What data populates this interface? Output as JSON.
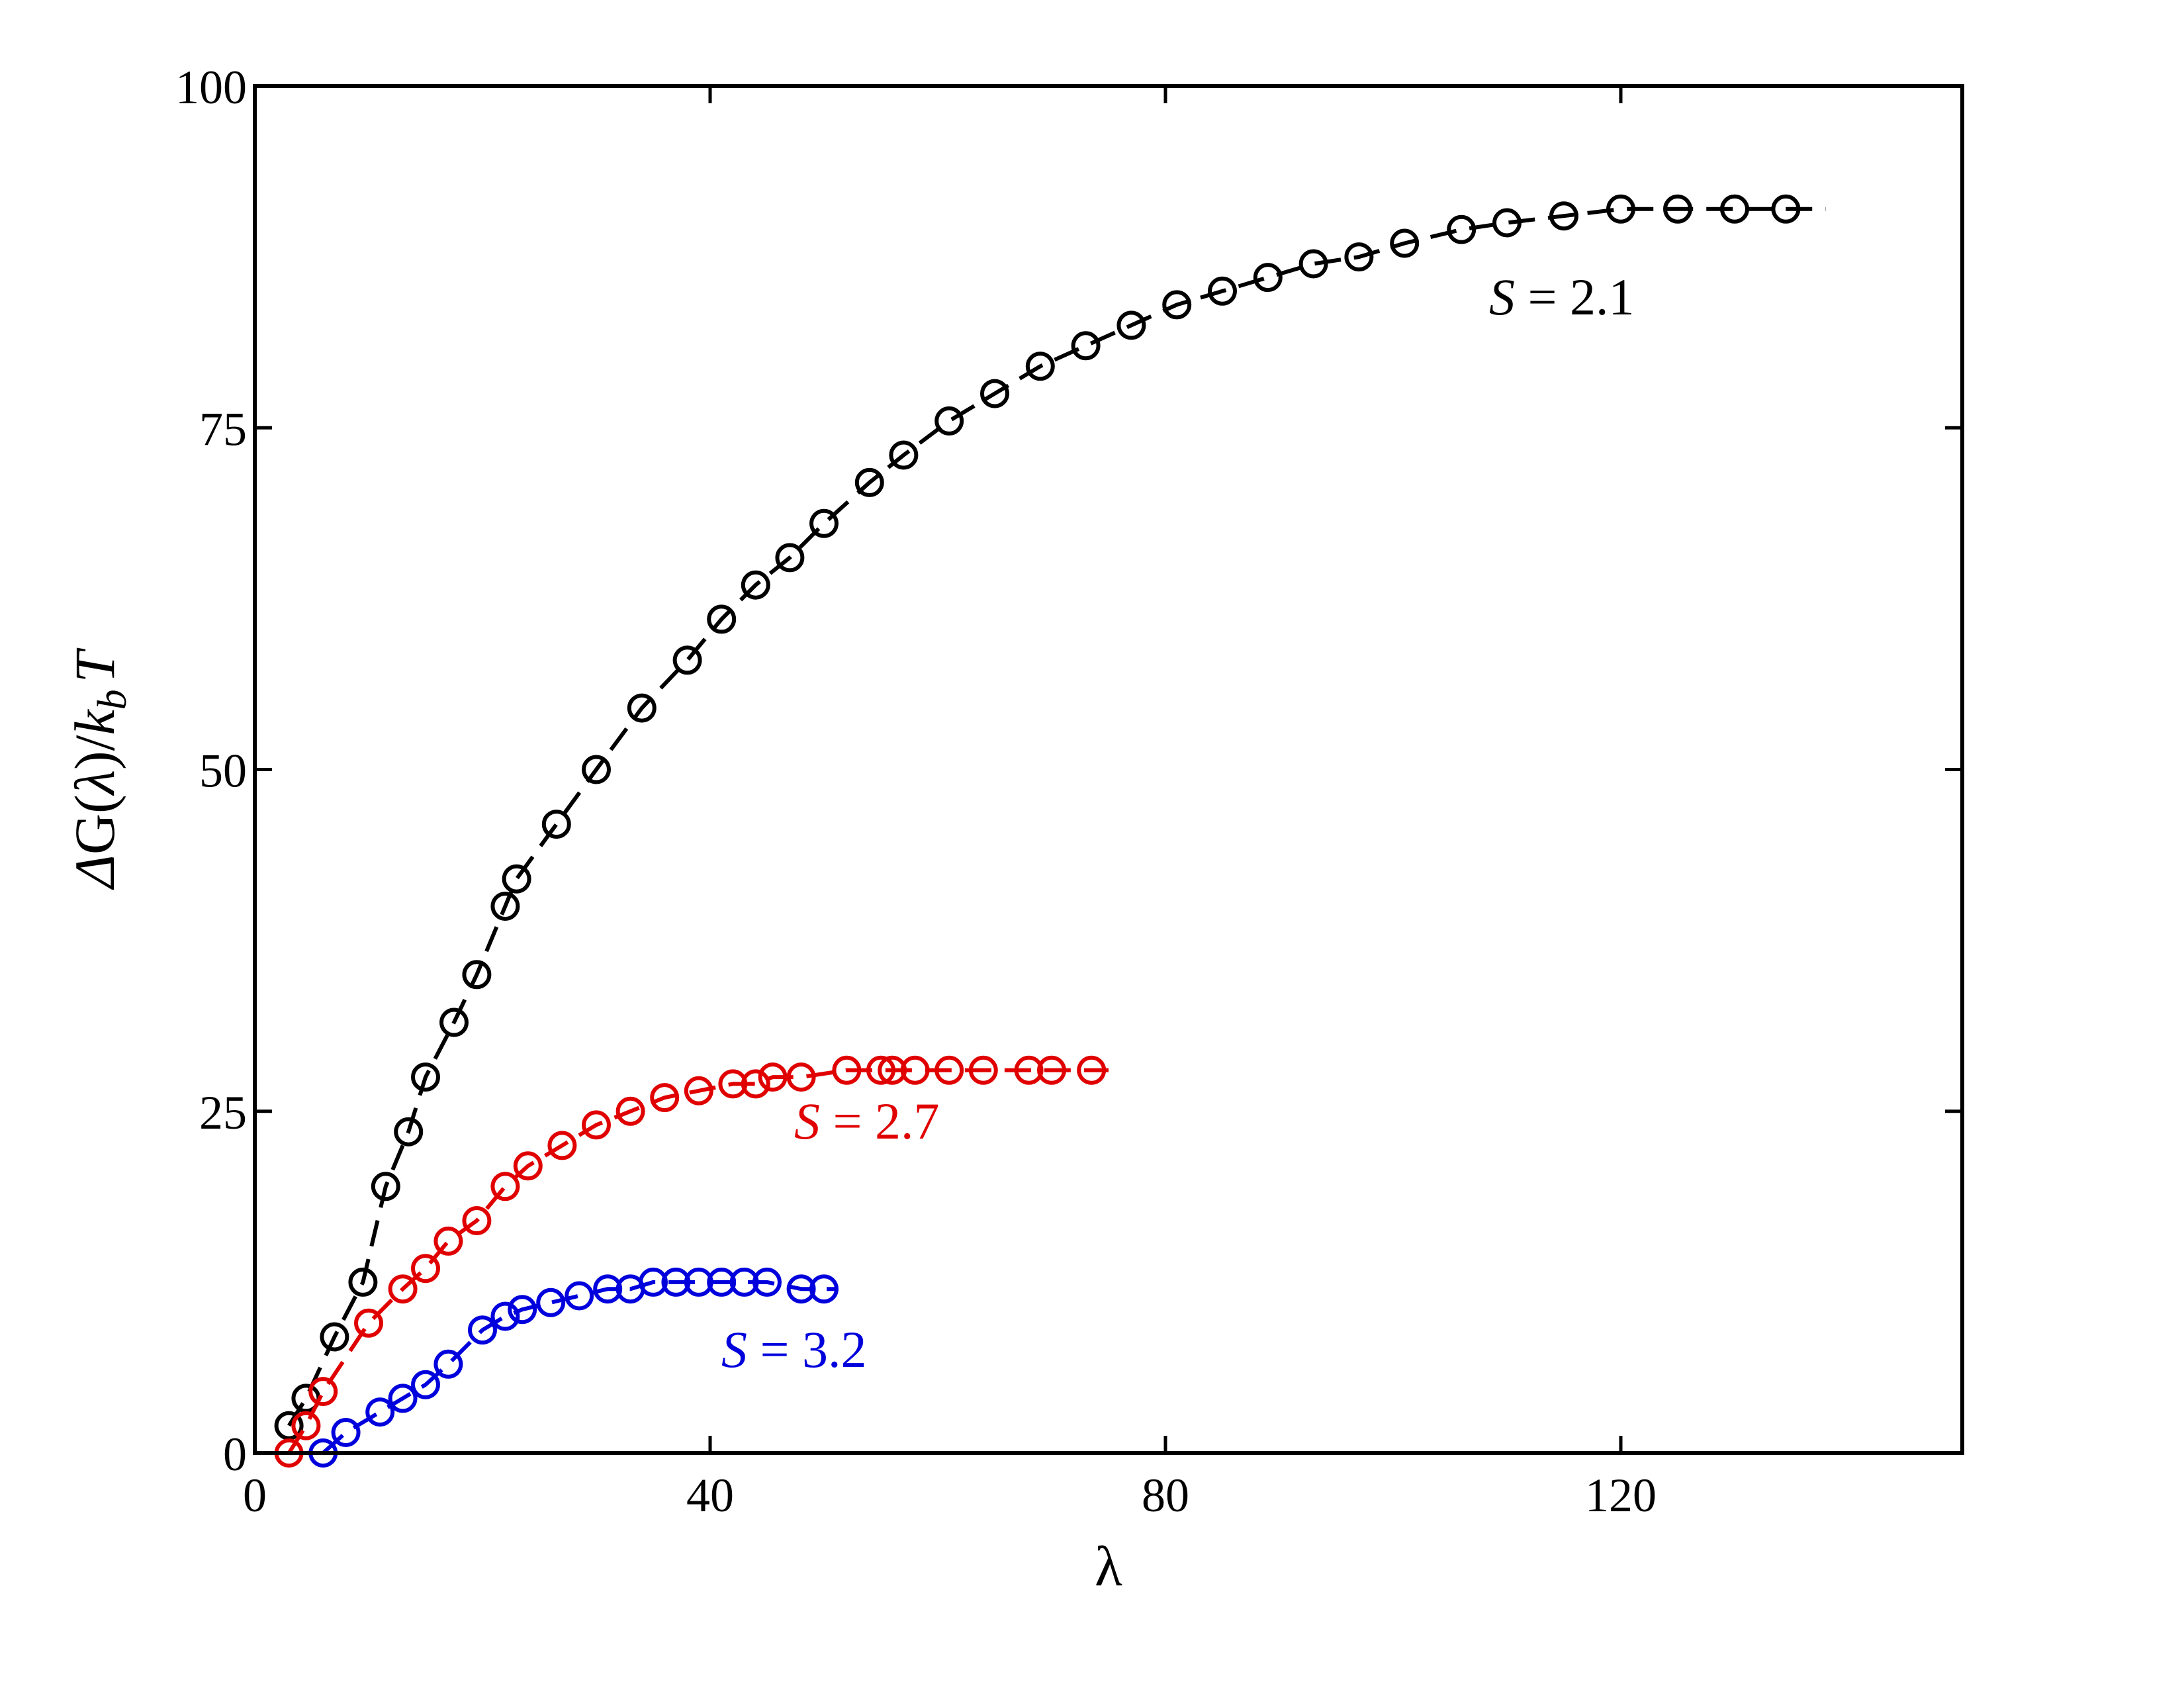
{
  "chart_data": {
    "type": "scatter",
    "xlabel": "λ",
    "ylabel": {
      "delta": "Δ",
      "G": "G(",
      "lambda": "λ",
      "slash": ")/",
      "k": "k",
      "sub": "b",
      "T": "T"
    },
    "xlim": [
      0,
      150
    ],
    "ylim": [
      0,
      100
    ],
    "xticks": [
      0,
      40,
      80,
      120
    ],
    "yticks": [
      0,
      25,
      50,
      75,
      100
    ],
    "grid": false,
    "series": [
      {
        "name": "S = 2.1",
        "label_parts": {
          "var": "S",
          "rest": " = 2.1"
        },
        "color": "#000000",
        "x": [
          3.0,
          4.5,
          7.0,
          9.5,
          11.5,
          13.5,
          15.0,
          17.5,
          19.5,
          22.0,
          23.0,
          26.5,
          30.0,
          34.0,
          38.0,
          41.0,
          44.0,
          47.0,
          50.0,
          54.0,
          57.0,
          61.0,
          65.0,
          69.0,
          73.0,
          77.0,
          81.0,
          85.0,
          89.0,
          93.0,
          97.0,
          101.0,
          106.0,
          110.0,
          115.0,
          120.0,
          125.0,
          130.0,
          134.5
        ],
        "y": [
          2.0,
          4.0,
          8.5,
          12.5,
          19.5,
          23.5,
          27.5,
          31.5,
          35.0,
          40.0,
          42.0,
          46.0,
          50.0,
          54.5,
          58.0,
          61.0,
          63.5,
          65.5,
          68.0,
          71.0,
          73.0,
          75.5,
          77.5,
          79.5,
          81.0,
          82.5,
          84.0,
          85.0,
          86.0,
          87.0,
          87.5,
          88.5,
          89.5,
          90.0,
          90.5,
          91.0,
          91.0,
          91.0,
          91.0
        ],
        "line_end_x": 138
      },
      {
        "name": "S = 2.7",
        "label_parts": {
          "var": "S",
          "rest": " = 2.7"
        },
        "color": "#e00000",
        "x": [
          3.0,
          4.5,
          6.0,
          10.0,
          13.0,
          15.0,
          17.0,
          19.5,
          22.0,
          24.0,
          27.0,
          30.0,
          33.0,
          36.0,
          39.0,
          42.0,
          44.0,
          45.5,
          48.0,
          52.0,
          55.0,
          56.0,
          58.0,
          61.0,
          64.0,
          68.0,
          70.0,
          73.5
        ],
        "y": [
          0.0,
          2.0,
          4.5,
          9.5,
          12.0,
          13.5,
          15.5,
          17.0,
          19.5,
          21.0,
          22.5,
          24.0,
          25.0,
          26.0,
          26.5,
          27.0,
          27.0,
          27.5,
          27.5,
          28.0,
          28.0,
          28.0,
          28.0,
          28.0,
          28.0,
          28.0,
          28.0,
          28.0
        ],
        "line_end_x": 75
      },
      {
        "name": "S = 3.2",
        "label_parts": {
          "var": "S",
          "rest": " = 3.2"
        },
        "color": "#0000dd",
        "x": [
          6.0,
          8.0,
          11.0,
          13.0,
          15.0,
          17.0,
          20.0,
          22.0,
          23.5,
          26.0,
          28.5,
          31.0,
          33.0,
          35.0,
          37.0,
          39.0,
          41.0,
          43.0,
          45.0,
          48.0,
          50.0
        ],
        "y": [
          0.0,
          1.5,
          3.0,
          4.0,
          5.0,
          6.5,
          9.0,
          10.0,
          10.5,
          11.0,
          11.5,
          12.0,
          12.0,
          12.5,
          12.5,
          12.5,
          12.5,
          12.5,
          12.5,
          12.0,
          12.0
        ],
        "line_end_x": 51
      }
    ]
  }
}
